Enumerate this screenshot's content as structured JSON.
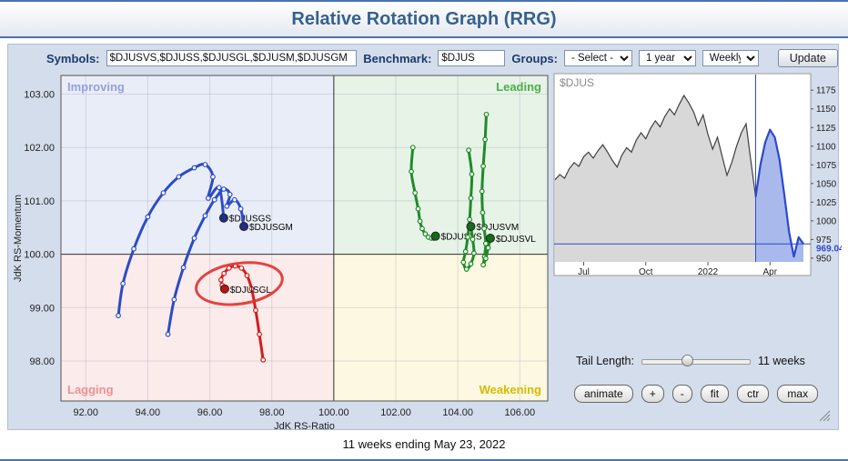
{
  "page": {
    "title": "Relative Rotation Graph (RRG)",
    "footer_caption": "11 weeks ending May 23, 2022",
    "accent_color": "#4a73b0"
  },
  "toolbar": {
    "symbols_label": "Symbols:",
    "symbols_value": "$DJUSVS,$DJUSS,$DJUSGL,$DJUSM,$DJUSGM",
    "benchmark_label": "Benchmark:",
    "benchmark_value": "$DJUS",
    "groups_label": "Groups:",
    "groups_option": "- Select -",
    "period_option": "1 year",
    "interval_option": "Weekly",
    "update_label": "Update"
  },
  "controls": {
    "tail_length_label": "Tail Length:",
    "tail_length_value": "11 weeks",
    "buttons": [
      "animate",
      "+",
      "-",
      "fit",
      "ctr",
      "max"
    ]
  },
  "chart_data": [
    {
      "type": "scatter",
      "name": "rrg",
      "xlabel": "JdK RS-Ratio",
      "ylabel": "JdK RS-Momentum",
      "xlim": [
        91.2,
        106.9
      ],
      "ylim": [
        97.25,
        103.35
      ],
      "xticks": [
        92,
        94,
        96,
        98,
        100,
        102,
        104,
        106
      ],
      "yticks": [
        98,
        99,
        100,
        101,
        102,
        103
      ],
      "center": [
        100,
        100
      ],
      "quadrants": [
        {
          "key": "improving",
          "label": "Improving",
          "position": "top-left",
          "fill": "#e9edf8",
          "label_color": "#93a0dc"
        },
        {
          "key": "leading",
          "label": "Leading",
          "position": "top-right",
          "fill": "#e7f3e7",
          "label_color": "#4aae4a"
        },
        {
          "key": "lagging",
          "label": "Lagging",
          "position": "bottom-left",
          "fill": "#fcebeb",
          "label_color": "#f09090"
        },
        {
          "key": "weakening",
          "label": "Weakening",
          "position": "bottom-right",
          "fill": "#fdf8e1",
          "label_color": "#d6ba00"
        }
      ],
      "series": [
        {
          "name": "$DJUSGS",
          "color": "#2c4cc3",
          "head_color": "#1e2f86",
          "points": [
            [
              93.05,
              98.85
            ],
            [
              93.2,
              99.45
            ],
            [
              93.55,
              100.1
            ],
            [
              94.0,
              100.7
            ],
            [
              94.5,
              101.15
            ],
            [
              95.0,
              101.45
            ],
            [
              95.5,
              101.62
            ],
            [
              95.85,
              101.68
            ],
            [
              96.1,
              101.45
            ],
            [
              95.95,
              101.05
            ],
            [
              96.3,
              101.25
            ],
            [
              96.45,
              100.68
            ]
          ]
        },
        {
          "name": "$DJUSGM",
          "color": "#2c4cc3",
          "head_color": "#1e2f86",
          "points": [
            [
              94.65,
              98.5
            ],
            [
              94.85,
              99.15
            ],
            [
              95.15,
              99.75
            ],
            [
              95.5,
              100.3
            ],
            [
              95.85,
              100.72
            ],
            [
              96.15,
              101.02
            ],
            [
              96.45,
              101.22
            ],
            [
              96.65,
              101.12
            ],
            [
              96.55,
              100.9
            ],
            [
              96.8,
              101.02
            ],
            [
              97.0,
              100.85
            ],
            [
              97.1,
              100.52
            ]
          ]
        },
        {
          "name": "$DJUSVS",
          "color": "#1f8b28",
          "head_color": "#146b1c",
          "points": [
            [
              102.55,
              102.0
            ],
            [
              102.5,
              101.55
            ],
            [
              102.62,
              101.15
            ],
            [
              102.72,
              100.85
            ],
            [
              102.78,
              100.62
            ],
            [
              102.85,
              100.48
            ],
            [
              102.95,
              100.38
            ],
            [
              103.05,
              100.32
            ],
            [
              103.15,
              100.3
            ],
            [
              103.22,
              100.3
            ],
            [
              103.25,
              100.32
            ],
            [
              103.28,
              100.34
            ]
          ]
        },
        {
          "name": "$DJUSVM",
          "color": "#1f8b28",
          "head_color": "#146b1c",
          "points": [
            [
              104.35,
              101.95
            ],
            [
              104.45,
              101.5
            ],
            [
              104.42,
              101.05
            ],
            [
              104.38,
              100.65
            ],
            [
              104.32,
              100.32
            ],
            [
              104.25,
              100.05
            ],
            [
              104.18,
              99.85
            ],
            [
              104.28,
              99.72
            ],
            [
              104.42,
              99.82
            ],
            [
              104.52,
              100.02
            ],
            [
              104.48,
              100.28
            ],
            [
              104.42,
              100.52
            ]
          ]
        },
        {
          "name": "$DJUSVL",
          "color": "#1f8b28",
          "head_color": "#146b1c",
          "points": [
            [
              104.92,
              102.62
            ],
            [
              104.88,
              102.15
            ],
            [
              104.82,
              101.65
            ],
            [
              104.78,
              101.18
            ],
            [
              104.8,
              100.78
            ],
            [
              104.85,
              100.48
            ],
            [
              104.9,
              100.2
            ],
            [
              104.86,
              99.95
            ],
            [
              104.82,
              99.8
            ],
            [
              104.9,
              99.92
            ],
            [
              104.98,
              100.12
            ],
            [
              105.05,
              100.3
            ]
          ]
        },
        {
          "name": "$DJUSGL",
          "color": "#d21d1d",
          "head_color": "#c11212",
          "points": [
            [
              97.72,
              98.02
            ],
            [
              97.6,
              98.5
            ],
            [
              97.48,
              98.95
            ],
            [
              97.35,
              99.35
            ],
            [
              97.2,
              99.6
            ],
            [
              97.02,
              99.74
            ],
            [
              96.82,
              99.78
            ],
            [
              96.62,
              99.74
            ],
            [
              96.46,
              99.64
            ],
            [
              96.36,
              99.52
            ],
            [
              96.4,
              99.42
            ],
            [
              96.48,
              99.35
            ]
          ]
        }
      ],
      "annotation": {
        "shape": "ellipse",
        "cx": 96.95,
        "cy": 99.45,
        "rx": 1.4,
        "ry": 0.38,
        "rotate_deg": -8,
        "color": "#e23030"
      }
    },
    {
      "type": "area",
      "name": "benchmark-price",
      "symbol": "$DJUS",
      "ylim": [
        945,
        1185
      ],
      "yticks": [
        950,
        975,
        1000,
        1025,
        1050,
        1075,
        1100,
        1125,
        1150,
        1175
      ],
      "x_tick_labels": [
        "Jul",
        "Oct",
        "2022",
        "Apr"
      ],
      "x_tick_indices": [
        6,
        19,
        32,
        45
      ],
      "values": [
        1055,
        1062,
        1057,
        1070,
        1078,
        1073,
        1086,
        1092,
        1084,
        1094,
        1102,
        1092,
        1081,
        1072,
        1088,
        1098,
        1092,
        1108,
        1118,
        1110,
        1124,
        1134,
        1126,
        1140,
        1150,
        1142,
        1156,
        1168,
        1158,
        1146,
        1128,
        1142,
        1116,
        1096,
        1112,
        1086,
        1061,
        1078,
        1100,
        1118,
        1130,
        1080,
        1032,
        1075,
        1105,
        1122,
        1112,
        1082,
        1035,
        985,
        952,
        978,
        969.04
      ],
      "highlight_start_index": 42,
      "last_price": 969.04,
      "last_price_label": "969.04",
      "colors": {
        "line": "#3f3f3f",
        "fill": "#d8d8d8",
        "highlight_line": "#2b49cc",
        "highlight_fill": "#a9b9ec"
      }
    }
  ]
}
